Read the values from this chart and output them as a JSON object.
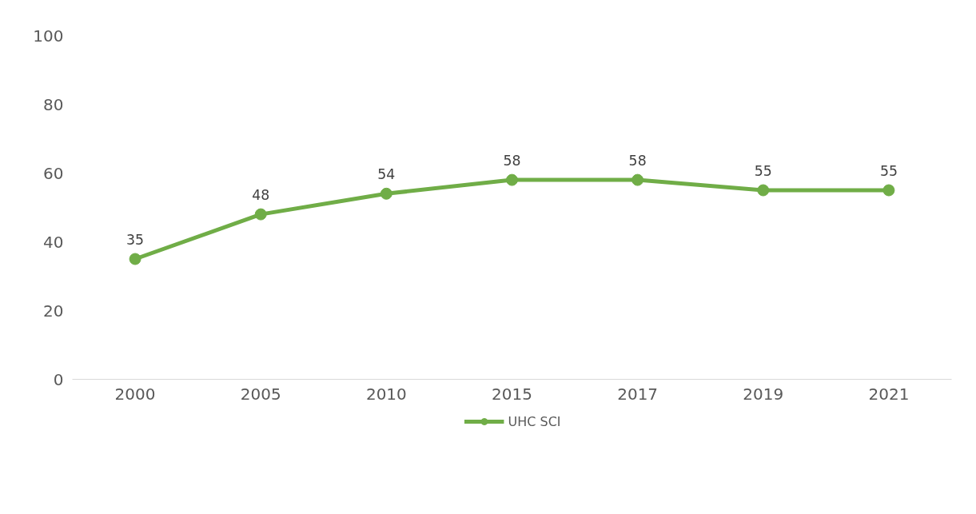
{
  "chart_data": {
    "type": "line",
    "categories": [
      "2000",
      "2005",
      "2010",
      "2015",
      "2017",
      "2019",
      "2021"
    ],
    "series": [
      {
        "name": "UHC SCI",
        "color": "#70ad47",
        "values": [
          35,
          48,
          54,
          58,
          58,
          55,
          55
        ]
      }
    ],
    "ylim": [
      0,
      100
    ],
    "yticks": [
      0,
      20,
      40,
      60,
      80,
      100
    ],
    "grid": false,
    "legend": "bottom",
    "marker": "circle",
    "line_style": "solid",
    "data_labels": true
  }
}
